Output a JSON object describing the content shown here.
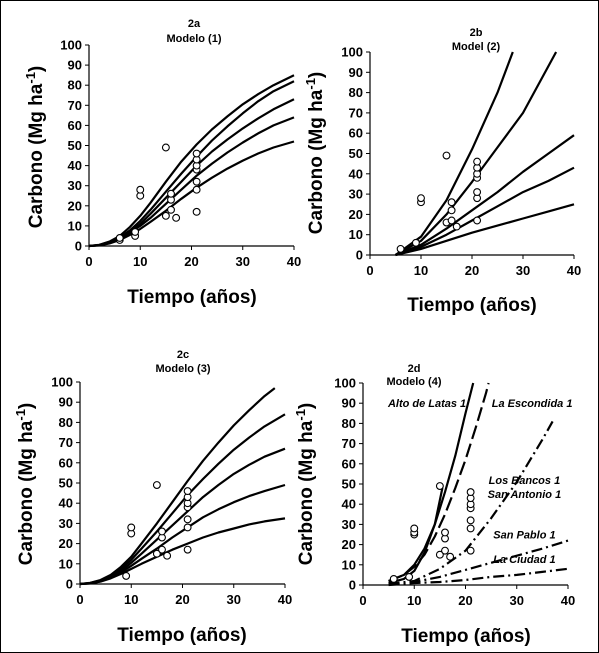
{
  "chart_data": [
    {
      "id": "2a",
      "type": "line",
      "panel_label": "2a",
      "subtitle": "Modelo (1)",
      "xlabel": "Tiempo (años)",
      "ylabel": "Carbono (Mg ha",
      "ylabel_sup": "-1",
      "ylabel_close": ")",
      "xlim": [
        0,
        40
      ],
      "ylim": [
        0,
        100
      ],
      "xticks": [
        0,
        10,
        20,
        30,
        40
      ],
      "yticks": [
        0,
        10,
        20,
        30,
        40,
        50,
        60,
        70,
        80,
        90,
        100
      ],
      "series": [
        {
          "dash": "solid",
          "x": [
            0,
            2,
            4,
            6,
            8,
            10,
            12,
            15,
            18,
            21,
            24,
            27,
            30,
            33,
            36,
            40
          ],
          "y": [
            0,
            0.3,
            1.3,
            3,
            5.5,
            8.5,
            12,
            17.5,
            23.5,
            29,
            34,
            38.5,
            42.5,
            46,
            49,
            52
          ]
        },
        {
          "dash": "solid",
          "x": [
            0,
            2,
            4,
            6,
            8,
            10,
            12,
            15,
            18,
            21,
            24,
            27,
            30,
            33,
            36,
            40
          ],
          "y": [
            0,
            0.4,
            1.5,
            3.5,
            6.5,
            10,
            14,
            21,
            28,
            35,
            41,
            46.5,
            51.5,
            56,
            60,
            64
          ]
        },
        {
          "dash": "solid",
          "x": [
            0,
            2,
            4,
            6,
            8,
            10,
            12,
            15,
            18,
            21,
            24,
            27,
            30,
            33,
            36,
            40
          ],
          "y": [
            0,
            0.4,
            1.6,
            3.8,
            7,
            11,
            16,
            24,
            32,
            40,
            47,
            53,
            58.5,
            63.5,
            68,
            73
          ]
        },
        {
          "dash": "solid",
          "x": [
            0,
            2,
            4,
            6,
            8,
            10,
            12,
            15,
            18,
            21,
            24,
            27,
            30,
            33,
            36,
            40
          ],
          "y": [
            0,
            0.5,
            1.8,
            4.2,
            7.8,
            12.5,
            18,
            27,
            36,
            44.5,
            52.5,
            59.5,
            66,
            72,
            77,
            82
          ]
        },
        {
          "dash": "solid",
          "x": [
            0,
            2,
            4,
            6,
            8,
            10,
            12,
            15,
            18,
            21,
            24,
            27,
            30,
            33,
            36,
            40
          ],
          "y": [
            0,
            0.6,
            2.2,
            5,
            9.5,
            15,
            21.5,
            32,
            42,
            50.5,
            58,
            64.5,
            70.5,
            75.5,
            80,
            85
          ]
        }
      ],
      "points": {
        "x": [
          6,
          6,
          9,
          9,
          10,
          10,
          15,
          15,
          16,
          16,
          16,
          17,
          21,
          21,
          21,
          21,
          21,
          21,
          21
        ],
        "y": [
          3,
          4,
          5,
          7,
          25,
          28,
          49,
          15,
          18,
          23,
          26,
          14,
          17,
          28,
          32,
          38,
          40,
          43,
          46
        ]
      }
    },
    {
      "id": "2b",
      "type": "line",
      "panel_label": "2b",
      "subtitle": "Model (2)",
      "xlabel": "Tiempo (años)",
      "ylabel": "Carbono (Mg ha",
      "ylabel_sup": "-1",
      "ylabel_close": ")",
      "xlim": [
        0,
        40
      ],
      "ylim": [
        0,
        100
      ],
      "xticks": [
        0,
        10,
        20,
        30,
        40
      ],
      "yticks": [
        0,
        10,
        20,
        30,
        40,
        50,
        60,
        70,
        80,
        90,
        100
      ],
      "series": [
        {
          "dash": "solid",
          "x": [
            5,
            10,
            15,
            20,
            25,
            30,
            35,
            40
          ],
          "y": [
            0,
            3,
            7,
            11,
            14.5,
            18,
            21.5,
            25
          ]
        },
        {
          "dash": "solid",
          "x": [
            5,
            10,
            15,
            20,
            25,
            30,
            35,
            40
          ],
          "y": [
            0,
            4,
            10,
            17,
            24,
            31,
            36.5,
            43
          ]
        },
        {
          "dash": "solid",
          "x": [
            5,
            10,
            15,
            20,
            25,
            30,
            35,
            40
          ],
          "y": [
            0,
            5,
            13,
            22,
            31,
            41,
            50,
            59
          ]
        },
        {
          "dash": "solid",
          "x": [
            5,
            10,
            15,
            20,
            25,
            30,
            36.5
          ],
          "y": [
            0,
            7,
            20,
            36,
            53,
            70,
            100
          ]
        },
        {
          "dash": "solid",
          "x": [
            5,
            10,
            15,
            20,
            25,
            28
          ],
          "y": [
            0,
            9,
            27,
            52,
            80,
            100
          ]
        }
      ],
      "points": {
        "x": [
          6,
          9,
          10,
          10,
          15,
          15,
          16,
          16,
          16,
          17,
          21,
          21,
          21,
          21,
          21,
          21,
          21
        ],
        "y": [
          3,
          6,
          26,
          28,
          49,
          16,
          17,
          22,
          26,
          14,
          17,
          28,
          31,
          38,
          40,
          43,
          46
        ]
      }
    },
    {
      "id": "2c",
      "type": "line",
      "panel_label": "2c",
      "subtitle": "Modelo (3)",
      "xlabel": "Tiempo (años)",
      "ylabel": "Carbono (Mg ha",
      "ylabel_sup": "-1",
      "ylabel_close": ")",
      "xlim": [
        0,
        40
      ],
      "ylim": [
        0,
        100
      ],
      "xticks": [
        0,
        10,
        20,
        30,
        40
      ],
      "yticks": [
        0,
        10,
        20,
        30,
        40,
        50,
        60,
        70,
        80,
        90,
        100
      ],
      "series": [
        {
          "dash": "solid",
          "x": [
            0,
            2,
            4,
            6,
            8,
            10,
            12,
            15,
            18,
            21,
            24,
            27,
            30,
            33,
            36,
            40
          ],
          "y": [
            0,
            0.3,
            1.2,
            2.8,
            5,
            7.5,
            10,
            13.5,
            17,
            20,
            23,
            25.5,
            27.5,
            29.5,
            31,
            32.5
          ]
        },
        {
          "dash": "solid",
          "x": [
            0,
            2,
            4,
            6,
            8,
            10,
            12,
            15,
            18,
            21,
            24,
            27,
            30,
            33,
            36,
            40
          ],
          "y": [
            0,
            0.3,
            1.3,
            3,
            5.8,
            9,
            12.5,
            17.5,
            23,
            28,
            33,
            37,
            40.5,
            43.5,
            46,
            49
          ]
        },
        {
          "dash": "solid",
          "x": [
            0,
            2,
            4,
            6,
            8,
            10,
            12,
            15,
            18,
            21,
            24,
            27,
            30,
            33,
            36,
            40
          ],
          "y": [
            0,
            0.4,
            1.5,
            3.5,
            6.5,
            10.5,
            15,
            22,
            29,
            36,
            43,
            49,
            54.5,
            59,
            63,
            67
          ]
        },
        {
          "dash": "solid",
          "x": [
            0,
            2,
            4,
            6,
            8,
            10,
            12,
            15,
            18,
            21,
            24,
            27,
            30,
            33,
            36,
            40
          ],
          "y": [
            0,
            0.5,
            1.8,
            4,
            7.5,
            12,
            17.5,
            26,
            35,
            44,
            52,
            59.5,
            66.5,
            72.5,
            78,
            84
          ]
        },
        {
          "dash": "solid",
          "x": [
            0,
            2,
            4,
            6,
            8,
            10,
            12,
            15,
            18,
            21,
            24,
            27,
            30,
            33,
            36,
            38
          ],
          "y": [
            0,
            0.6,
            2,
            4.5,
            8.5,
            13.5,
            20,
            30,
            40.5,
            51,
            61,
            70,
            78.5,
            86,
            93,
            97
          ]
        }
      ],
      "points": {
        "x": [
          9,
          10,
          10,
          15,
          15,
          16,
          16,
          16,
          17,
          21,
          21,
          21,
          21,
          21,
          21,
          21
        ],
        "y": [
          4,
          25,
          28,
          49,
          15,
          17,
          23,
          26,
          14,
          17,
          28,
          32,
          38,
          40,
          43,
          46
        ]
      }
    },
    {
      "id": "2d",
      "type": "line",
      "panel_label": "2d",
      "subtitle": "Modelo (4)",
      "xlabel": "Tiempo (años)",
      "ylabel": "Carbono (Mg ha",
      "ylabel_sup": "-1",
      "ylabel_close": ")",
      "xlim": [
        0,
        40
      ],
      "ylim": [
        0,
        100
      ],
      "xticks": [
        0,
        10,
        20,
        30,
        40
      ],
      "yticks": [
        0,
        10,
        20,
        30,
        40,
        50,
        60,
        70,
        80,
        90,
        100
      ],
      "series": [
        {
          "name": "Alto de Latas 1",
          "dash": "solid",
          "x": [
            5,
            8,
            10,
            12,
            14,
            16,
            18,
            20,
            21.5
          ],
          "y": [
            2,
            5,
            10,
            18,
            30,
            46,
            64,
            85,
            100
          ]
        },
        {
          "name": "La Escondida 1",
          "dash": "longdash",
          "x": [
            5,
            8,
            10,
            12,
            14,
            16,
            18,
            20,
            22,
            24,
            24.5
          ],
          "y": [
            2,
            5,
            9,
            15,
            24,
            35,
            48,
            62,
            78,
            95,
            100
          ]
        },
        {
          "name": "Los Bancos 1",
          "dash": "dashdot",
          "x": [
            5,
            10,
            15,
            20,
            25,
            30,
            35,
            37
          ],
          "y": [
            0.5,
            2,
            8,
            17,
            33,
            51,
            72,
            81
          ]
        },
        {
          "name": "San Antonio 1",
          "dash": "dashdot",
          "x": [
            5,
            10,
            15,
            20,
            25,
            30,
            35,
            40
          ],
          "y": [
            0.5,
            1.5,
            4,
            7.5,
            11,
            14.5,
            18,
            22
          ]
        },
        {
          "name": "San Pablo 1",
          "dash": "dashdot",
          "x": [
            5,
            10,
            15,
            20,
            25,
            30,
            35,
            40
          ],
          "y": [
            0,
            1,
            1.5,
            2.5,
            4,
            5,
            6.5,
            8
          ]
        },
        {
          "name": "La Ciudad 1",
          "dash": "solid",
          "x": [
            5,
            8,
            10,
            12,
            14,
            15.5
          ],
          "y": [
            1,
            3,
            7,
            16,
            30,
            48
          ]
        }
      ],
      "annotations": [
        {
          "text": "Alto de Latas 1",
          "x": 12.5,
          "y": 88
        },
        {
          "text": "La Escondida 1",
          "x": 33,
          "y": 88
        },
        {
          "text": "Los Bancos 1",
          "x": 31.5,
          "y": 50
        },
        {
          "text": "San Antonio 1",
          "x": 31.5,
          "y": 43
        },
        {
          "text": "San Pablo 1",
          "x": 31.5,
          "y": 23
        },
        {
          "text": "La Ciudad 1",
          "x": 31.5,
          "y": 11
        }
      ],
      "points": {
        "x": [
          6,
          9,
          10,
          10,
          10,
          15,
          15,
          16,
          16,
          16,
          17,
          21,
          21,
          21,
          21,
          21,
          21,
          21
        ],
        "y": [
          3,
          4,
          25,
          26,
          28,
          49,
          15,
          17,
          23,
          26,
          14,
          17,
          28,
          32,
          38,
          40,
          43,
          46
        ]
      }
    }
  ]
}
